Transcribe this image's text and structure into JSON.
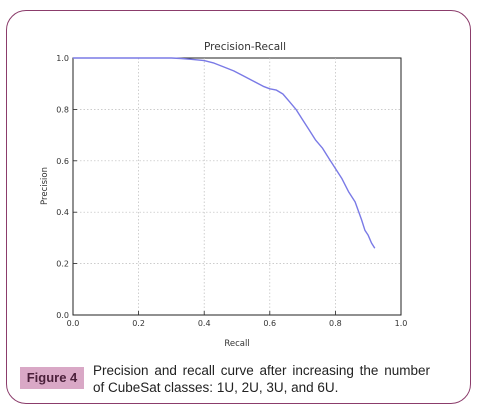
{
  "caption": {
    "label": "Figure 4",
    "text": "Precision and recall curve after increasing the number of CubeSat classes: 1U, 2U, 3U, and 6U."
  },
  "colors": {
    "frame": "#8b3c6b",
    "label_bg": "#d9a8c6",
    "line": "#7a7ae6"
  },
  "chart_data": {
    "type": "line",
    "title": "Precision-Recall",
    "xlabel": "Recall",
    "ylabel": "Precision",
    "xlim": [
      0.0,
      1.0
    ],
    "ylim": [
      0.0,
      1.0
    ],
    "xticks": [
      "0.0",
      "0.2",
      "0.4",
      "0.6",
      "0.8",
      "1.0"
    ],
    "yticks": [
      "0.0",
      "0.2",
      "0.4",
      "0.6",
      "0.8",
      "1.0"
    ],
    "grid": true,
    "series": [
      {
        "x": [
          0.0,
          0.1,
          0.2,
          0.3,
          0.33,
          0.36,
          0.4,
          0.43,
          0.46,
          0.49,
          0.52,
          0.55,
          0.58,
          0.6,
          0.62,
          0.64,
          0.66,
          0.68,
          0.7,
          0.72,
          0.74,
          0.76,
          0.78,
          0.8,
          0.82,
          0.84,
          0.86,
          0.88,
          0.89,
          0.9,
          0.91,
          0.92
        ],
        "y": [
          1.0,
          1.0,
          1.0,
          1.0,
          0.998,
          0.995,
          0.99,
          0.98,
          0.965,
          0.95,
          0.93,
          0.91,
          0.89,
          0.88,
          0.875,
          0.86,
          0.83,
          0.8,
          0.76,
          0.72,
          0.68,
          0.65,
          0.61,
          0.57,
          0.53,
          0.48,
          0.44,
          0.37,
          0.33,
          0.31,
          0.28,
          0.26
        ]
      }
    ]
  }
}
